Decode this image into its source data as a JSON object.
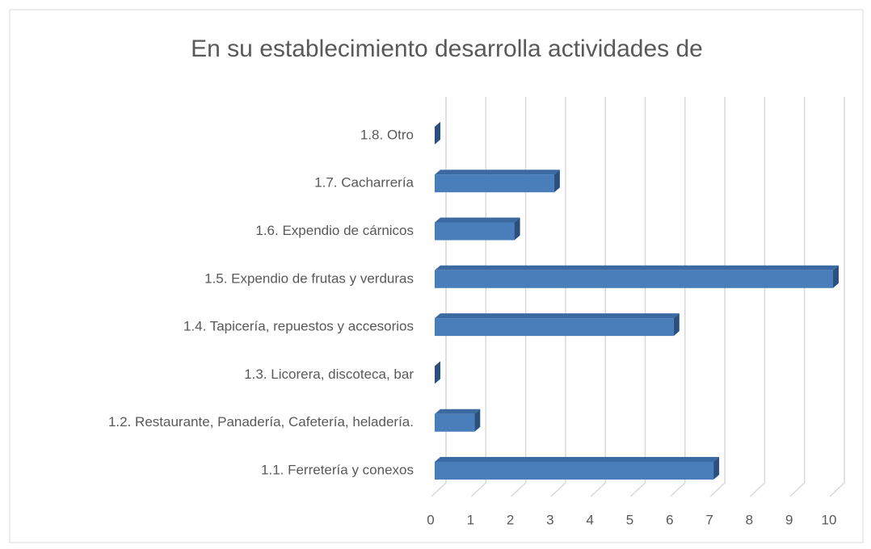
{
  "chart_data": {
    "type": "bar",
    "orientation": "horizontal",
    "title": "En su establecimiento desarrolla actividades de",
    "categories": [
      "1.1. Ferretería y conexos",
      "1.2. Restaurante, Panadería, Cafetería, heladería.",
      "1.3. Licorera, discoteca, bar",
      "1.4. Tapicería, repuestos y accesorios",
      "1.5. Expendio de frutas y verduras",
      "1.6. Expendio de cárnicos",
      "1.7. Cacharrería",
      "1.8. Otro"
    ],
    "values": [
      7,
      1,
      0,
      6,
      10,
      2,
      3,
      0
    ],
    "color": "#4a7ebb",
    "xlim": [
      0,
      10
    ],
    "xticks": [
      0,
      1,
      2,
      3,
      4,
      5,
      6,
      7,
      8,
      9,
      10
    ],
    "grid": true
  }
}
